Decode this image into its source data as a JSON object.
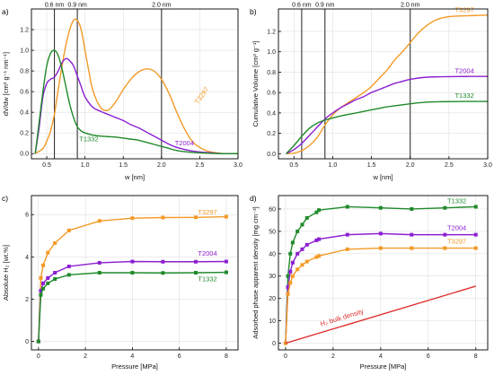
{
  "colors": {
    "T3297": "#f39a27",
    "T2004": "#8b1fd1",
    "T1332": "#1f8a2a",
    "bulk": "#e03030",
    "vline": "#333333",
    "grid": "#d9d9d9"
  },
  "chart_data": [
    {
      "id": "a",
      "panel_label": "a)",
      "type": "line",
      "xlabel": "w [nm]",
      "ylabel": "dV/dw [cm³ g⁻¹ nm⁻¹]",
      "xlim": [
        0.3,
        3.0
      ],
      "ylim": [
        -0.05,
        1.4
      ],
      "xticks": [
        0.5,
        1.0,
        1.5,
        2.0,
        2.5,
        3.0
      ],
      "xtick_labels": [
        "0.5",
        "1.0",
        "1.5",
        "2.0",
        "2.5",
        "3.0"
      ],
      "yticks": [
        0.0,
        0.2,
        0.4,
        0.6,
        0.8,
        1.0,
        1.2
      ],
      "ytick_labels": [
        "0.0",
        "0.2",
        "0.4",
        "0.6",
        "0.8",
        "1.0",
        "1.2"
      ],
      "grid": true,
      "vlines": [
        {
          "x": 0.6,
          "label": "0.6 nm"
        },
        {
          "x": 0.9,
          "label": "0.9 nm"
        },
        {
          "x": 2.0,
          "label": "2.0 nm"
        }
      ],
      "series": [
        {
          "name": "T3297",
          "color": "#f39a27",
          "label_rotation": 55,
          "x": [
            0.35,
            0.45,
            0.5,
            0.55,
            0.6,
            0.65,
            0.7,
            0.75,
            0.8,
            0.85,
            0.9,
            0.95,
            1.0,
            1.05,
            1.1,
            1.2,
            1.3,
            1.4,
            1.5,
            1.6,
            1.7,
            1.8,
            1.9,
            2.0,
            2.1,
            2.2,
            2.3,
            2.4,
            2.5,
            2.6,
            2.7,
            2.8,
            2.9,
            3.0
          ],
          "y": [
            0.0,
            0.05,
            0.12,
            0.22,
            0.38,
            0.62,
            0.85,
            1.05,
            1.2,
            1.29,
            1.29,
            1.2,
            1.0,
            0.8,
            0.62,
            0.45,
            0.42,
            0.5,
            0.62,
            0.72,
            0.79,
            0.82,
            0.8,
            0.72,
            0.58,
            0.4,
            0.24,
            0.12,
            0.06,
            0.025,
            0.01,
            0.0,
            0.0,
            0.0
          ]
        },
        {
          "name": "T2004",
          "color": "#8b1fd1",
          "label_rotation": 0,
          "x": [
            0.35,
            0.4,
            0.45,
            0.5,
            0.55,
            0.6,
            0.65,
            0.7,
            0.75,
            0.8,
            0.85,
            0.9,
            0.95,
            1.0,
            1.1,
            1.2,
            1.3,
            1.4,
            1.5,
            1.6,
            1.7,
            1.8,
            1.9,
            2.0,
            2.1,
            2.2,
            2.4,
            2.6,
            2.8,
            3.0
          ],
          "y": [
            0.0,
            0.25,
            0.55,
            0.68,
            0.72,
            0.74,
            0.8,
            0.88,
            0.92,
            0.9,
            0.85,
            0.75,
            0.65,
            0.55,
            0.45,
            0.41,
            0.38,
            0.35,
            0.32,
            0.28,
            0.25,
            0.21,
            0.17,
            0.13,
            0.09,
            0.06,
            0.025,
            0.01,
            0.0,
            0.0
          ]
        },
        {
          "name": "T1332",
          "color": "#1f8a2a",
          "label_rotation": 0,
          "x": [
            0.35,
            0.4,
            0.45,
            0.5,
            0.55,
            0.6,
            0.65,
            0.7,
            0.75,
            0.8,
            0.85,
            0.9,
            0.95,
            1.0,
            1.1,
            1.2,
            1.3,
            1.4,
            1.5,
            1.6,
            1.7,
            1.8,
            1.9,
            2.0,
            2.1,
            2.2,
            2.4,
            2.6,
            2.8,
            3.0
          ],
          "y": [
            0.0,
            0.3,
            0.6,
            0.85,
            0.97,
            1.0,
            0.95,
            0.82,
            0.65,
            0.48,
            0.35,
            0.26,
            0.22,
            0.2,
            0.18,
            0.17,
            0.165,
            0.16,
            0.15,
            0.14,
            0.13,
            0.11,
            0.09,
            0.07,
            0.05,
            0.03,
            0.012,
            0.004,
            0.0,
            0.0
          ]
        }
      ]
    },
    {
      "id": "b",
      "panel_label": "b)",
      "type": "line",
      "xlabel": "w [nm]",
      "ylabel": "Cumulative Volume [cm³ g⁻¹]",
      "xlim": [
        0.3,
        3.0
      ],
      "ylim": [
        -0.05,
        1.42
      ],
      "xticks": [
        0.5,
        1.0,
        1.5,
        2.0,
        2.5,
        3.0
      ],
      "xtick_labels": [
        "0.5",
        "1.0",
        "1.5",
        "2.0",
        "2.5",
        "3.0"
      ],
      "yticks": [
        0.0,
        0.2,
        0.4,
        0.6,
        0.8,
        1.0,
        1.2
      ],
      "ytick_labels": [
        "0.0",
        "0.2",
        "0.4",
        "0.6",
        "0.8",
        "1.0",
        "1.2"
      ],
      "grid": true,
      "vlines": [
        {
          "x": 0.6,
          "label": "0.6 nm"
        },
        {
          "x": 0.9,
          "label": "0.9 nm"
        },
        {
          "x": 2.0,
          "label": "2.0 nm"
        }
      ],
      "series": [
        {
          "name": "T3297",
          "color": "#f39a27",
          "label_rotation": 0,
          "x": [
            0.4,
            0.5,
            0.6,
            0.7,
            0.8,
            0.9,
            1.0,
            1.1,
            1.2,
            1.3,
            1.4,
            1.5,
            1.6,
            1.7,
            1.8,
            1.9,
            2.0,
            2.1,
            2.2,
            2.3,
            2.4,
            2.5,
            2.6,
            2.8,
            3.0
          ],
          "y": [
            0.0,
            0.005,
            0.03,
            0.08,
            0.16,
            0.28,
            0.38,
            0.45,
            0.5,
            0.55,
            0.6,
            0.66,
            0.74,
            0.82,
            0.92,
            1.0,
            1.09,
            1.18,
            1.25,
            1.3,
            1.33,
            1.345,
            1.35,
            1.355,
            1.36
          ]
        },
        {
          "name": "T2004",
          "color": "#8b1fd1",
          "label_rotation": 0,
          "x": [
            0.4,
            0.5,
            0.6,
            0.7,
            0.8,
            0.9,
            1.0,
            1.1,
            1.2,
            1.3,
            1.4,
            1.5,
            1.6,
            1.7,
            1.8,
            1.9,
            2.0,
            2.2,
            2.4,
            2.6,
            2.8,
            3.0
          ],
          "y": [
            0.0,
            0.04,
            0.1,
            0.18,
            0.26,
            0.34,
            0.4,
            0.45,
            0.49,
            0.53,
            0.56,
            0.6,
            0.63,
            0.66,
            0.69,
            0.71,
            0.73,
            0.75,
            0.755,
            0.757,
            0.758,
            0.758
          ]
        },
        {
          "name": "T1332",
          "color": "#1f8a2a",
          "label_rotation": 0,
          "x": [
            0.4,
            0.5,
            0.6,
            0.7,
            0.8,
            0.9,
            1.0,
            1.1,
            1.2,
            1.3,
            1.4,
            1.5,
            1.6,
            1.7,
            1.8,
            1.9,
            2.0,
            2.2,
            2.4,
            2.6,
            2.8,
            3.0
          ],
          "y": [
            0.0,
            0.08,
            0.17,
            0.25,
            0.3,
            0.33,
            0.35,
            0.37,
            0.385,
            0.4,
            0.415,
            0.43,
            0.445,
            0.46,
            0.47,
            0.48,
            0.49,
            0.505,
            0.51,
            0.512,
            0.513,
            0.513
          ]
        }
      ]
    },
    {
      "id": "c",
      "panel_label": "c)",
      "type": "line",
      "xlabel": "Pressure [MPa]",
      "ylabel": "Absolute H₂ [wt.%]",
      "xlim": [
        -0.3,
        8.5
      ],
      "ylim": [
        -0.4,
        6.9
      ],
      "xticks": [
        0,
        2,
        4,
        6,
        8
      ],
      "xtick_labels": [
        "0",
        "2",
        "4",
        "6",
        "8"
      ],
      "yticks": [
        0,
        2,
        4,
        6
      ],
      "ytick_labels": [
        "0",
        "2",
        "4",
        "6"
      ],
      "grid": true,
      "markers": true,
      "series": [
        {
          "name": "T3297",
          "color": "#f39a27",
          "label_rotation": 0,
          "x": [
            0,
            0.1,
            0.2,
            0.4,
            0.7,
            1.3,
            2.6,
            4.0,
            5.3,
            6.7,
            8.0
          ],
          "y": [
            0,
            3.0,
            3.6,
            4.2,
            4.65,
            5.25,
            5.7,
            5.83,
            5.86,
            5.87,
            5.9
          ]
        },
        {
          "name": "T2004",
          "color": "#8b1fd1",
          "label_rotation": 0,
          "x": [
            0,
            0.1,
            0.2,
            0.4,
            0.7,
            1.3,
            2.6,
            4.0,
            5.3,
            6.7,
            8.0
          ],
          "y": [
            0,
            2.4,
            2.75,
            3.0,
            3.25,
            3.55,
            3.72,
            3.78,
            3.77,
            3.77,
            3.78
          ]
        },
        {
          "name": "T1332",
          "color": "#1f8a2a",
          "label_rotation": 0,
          "x": [
            0,
            0.1,
            0.2,
            0.4,
            0.7,
            1.3,
            2.6,
            4.0,
            5.3,
            6.7,
            8.0
          ],
          "y": [
            0,
            2.2,
            2.5,
            2.75,
            2.95,
            3.15,
            3.25,
            3.25,
            3.24,
            3.25,
            3.27
          ]
        }
      ]
    },
    {
      "id": "d",
      "panel_label": "d)",
      "type": "line",
      "xlabel": "Pressure [MPa]",
      "ylabel": "Adsorbed phase apparent density [mg cm⁻³]",
      "xlim": [
        -0.3,
        8.5
      ],
      "ylim": [
        -3,
        66
      ],
      "xticks": [
        0,
        2,
        4,
        6,
        8
      ],
      "xtick_labels": [
        "0",
        "2",
        "4",
        "6",
        "8"
      ],
      "yticks": [
        0,
        10,
        20,
        30,
        40,
        50,
        60
      ],
      "ytick_labels": [
        "0",
        "10",
        "20",
        "30",
        "40",
        "50",
        "60"
      ],
      "grid": true,
      "markers": true,
      "series": [
        {
          "name": "T1332",
          "color": "#1f8a2a",
          "label_rotation": 0,
          "x": [
            0,
            0.1,
            0.2,
            0.3,
            0.5,
            0.7,
            0.9,
            1.3,
            1.4,
            2.6,
            4.0,
            5.3,
            6.7,
            8.0
          ],
          "y": [
            0,
            30,
            40,
            45,
            50,
            53,
            56,
            58.5,
            59.5,
            61,
            60.5,
            60,
            60.5,
            61
          ]
        },
        {
          "name": "T2004",
          "color": "#8b1fd1",
          "label_rotation": 0,
          "x": [
            0,
            0.1,
            0.2,
            0.3,
            0.5,
            0.7,
            0.9,
            1.3,
            1.4,
            2.6,
            4.0,
            5.3,
            6.7,
            8.0
          ],
          "y": [
            0,
            25,
            32,
            36,
            40,
            42,
            44,
            46,
            46.5,
            48.5,
            49,
            48.5,
            48.5,
            48.5
          ]
        },
        {
          "name": "T3297",
          "color": "#f39a27",
          "label_rotation": 0,
          "x": [
            0,
            0.1,
            0.2,
            0.3,
            0.5,
            0.7,
            0.9,
            1.3,
            1.4,
            2.6,
            4.0,
            5.3,
            6.7,
            8.0
          ],
          "y": [
            0,
            22,
            27,
            30,
            33,
            35,
            36.5,
            38.5,
            39,
            42,
            42.5,
            42.5,
            42.5,
            42.5
          ]
        },
        {
          "name": "H₂ bulk density",
          "color": "#e03030",
          "label_rotation": 17,
          "no_markers": true,
          "x": [
            0,
            8.0
          ],
          "y": [
            0,
            25.5
          ]
        }
      ]
    }
  ]
}
